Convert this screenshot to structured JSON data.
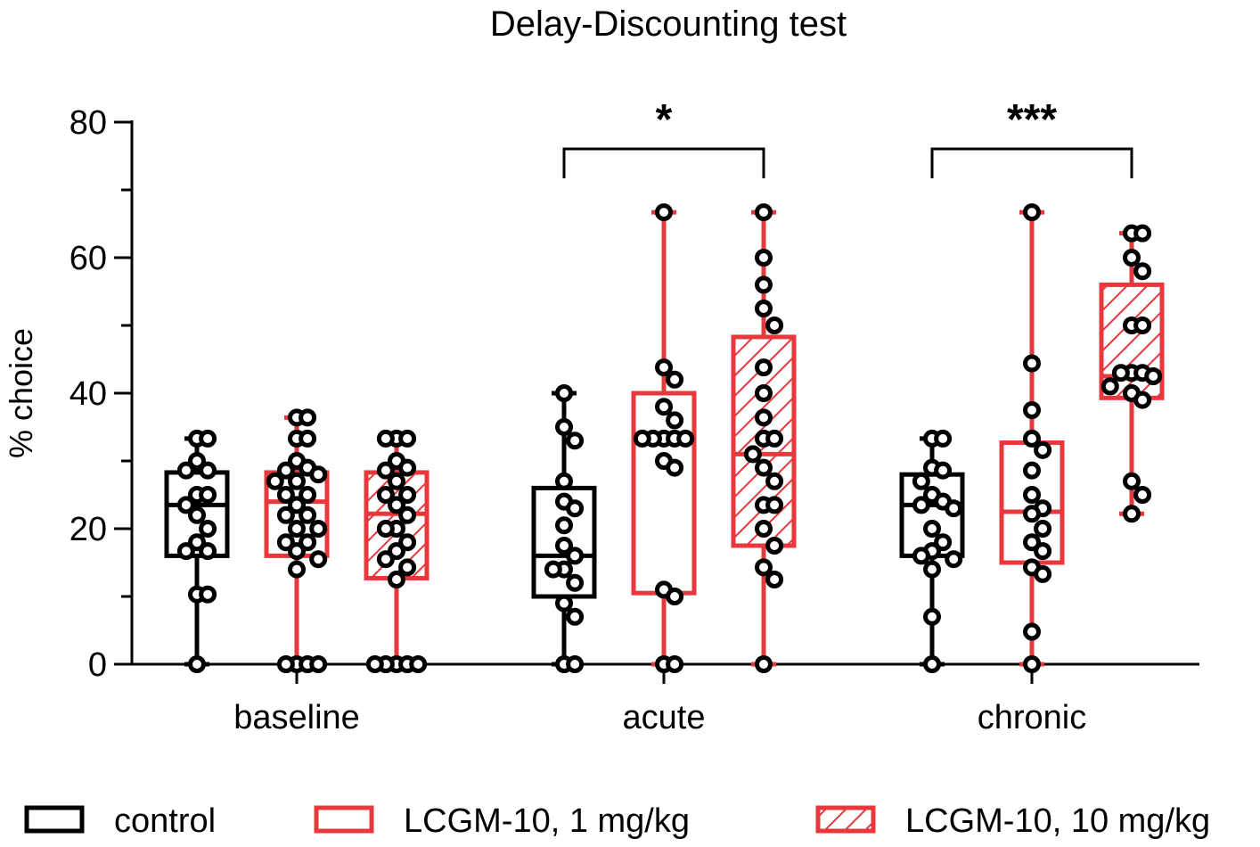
{
  "chart_data": {
    "type": "box",
    "title": "Delay-Discounting test",
    "xlabel": "",
    "ylabel": "% choice",
    "ylim": [
      0,
      80
    ],
    "yticks": [
      "0",
      "20",
      "40",
      "60",
      "80"
    ],
    "categories": [
      "baseline",
      "acute",
      "chronic"
    ],
    "colors": {
      "control": "#000000",
      "treatment": "#e8383d"
    },
    "series": [
      {
        "name": "control",
        "style": "open",
        "boxes": [
          {
            "min": 0,
            "q1": 16,
            "median": 23.5,
            "q3": 28.3,
            "max": 33.3,
            "points": [
              33.3,
              33.3,
              30,
              28.6,
              28.6,
              25,
              25,
              23.5,
              22,
              20,
              18,
              16.7,
              16.7,
              10.3,
              10.3,
              0
            ]
          },
          {
            "min": 0,
            "q1": 10,
            "median": 16,
            "q3": 26,
            "max": 40,
            "points": [
              40,
              35,
              33,
              27,
              24,
              23,
              20.5,
              17.5,
              16,
              14,
              14,
              12,
              9,
              7,
              0,
              0
            ]
          },
          {
            "min": 0,
            "q1": 16,
            "median": 23.5,
            "q3": 28,
            "max": 33.3,
            "points": [
              33.3,
              33.3,
              29,
              28.6,
              27,
              25,
              24,
              23.5,
              23,
              20,
              18,
              16.7,
              16,
              15.5,
              14,
              7,
              0
            ]
          }
        ]
      },
      {
        "name": "LCGM-10, 1 mg/kg",
        "style": "open",
        "boxes": [
          {
            "min": 0,
            "q1": 16,
            "median": 24,
            "q3": 28.3,
            "max": 36.4,
            "points": [
              36.4,
              36.4,
              33.3,
              33.3,
              30,
              29,
              28.6,
              28,
              27,
              27,
              25,
              25,
              23.5,
              22,
              22,
              20,
              20,
              18,
              18,
              16.7,
              15.5,
              14,
              0,
              0,
              0,
              0
            ]
          },
          {
            "min": 0,
            "q1": 10.5,
            "median": 33.3,
            "q3": 40,
            "max": 66.7,
            "points": [
              66.7,
              43.8,
              42,
              38,
              36,
              33.3,
              33.3,
              33.3,
              33.3,
              33.3,
              30,
              29,
              11,
              10,
              0,
              0
            ]
          },
          {
            "min": 0,
            "q1": 15,
            "median": 22.5,
            "q3": 32.7,
            "max": 66.7,
            "points": [
              66.7,
              44.4,
              37.5,
              33.3,
              31.6,
              28.6,
              25,
              23,
              22.2,
              20,
              18,
              16.7,
              14.3,
              13.3,
              4.8,
              0
            ]
          }
        ]
      },
      {
        "name": "LCGM-10, 10 mg/kg",
        "style": "hatched",
        "boxes": [
          {
            "min": 0,
            "q1": 12.7,
            "median": 22.2,
            "q3": 28.3,
            "max": 33.3,
            "points": [
              33.3,
              33.3,
              33.3,
              30,
              29,
              28.6,
              27,
              25,
              25,
              23.5,
              22,
              20,
              20,
              18,
              16.7,
              15.5,
              14.3,
              12.5,
              0,
              0,
              0,
              0,
              0
            ]
          },
          {
            "min": 0,
            "q1": 17.5,
            "median": 31,
            "q3": 48.3,
            "max": 66.7,
            "points": [
              66.7,
              60,
              56,
              52.5,
              50,
              43.8,
              40,
              36.4,
              33.3,
              33.3,
              31,
              29,
              27,
              23.5,
              23.5,
              20,
              17.5,
              14.3,
              12.5,
              0
            ]
          },
          {
            "min": 22.2,
            "q1": 39.3,
            "median": 42.5,
            "q3": 56,
            "max": 63.6,
            "points": [
              63.6,
              63.6,
              60,
              58,
              50,
              50,
              43,
              43,
              43,
              42.5,
              41,
              40,
              39,
              27,
              25,
              22.2
            ]
          }
        ]
      }
    ],
    "annotations": [
      {
        "category": "acute",
        "text": "*"
      },
      {
        "category": "chronic",
        "text": "***"
      }
    ],
    "legend": {
      "position": "bottom"
    }
  }
}
